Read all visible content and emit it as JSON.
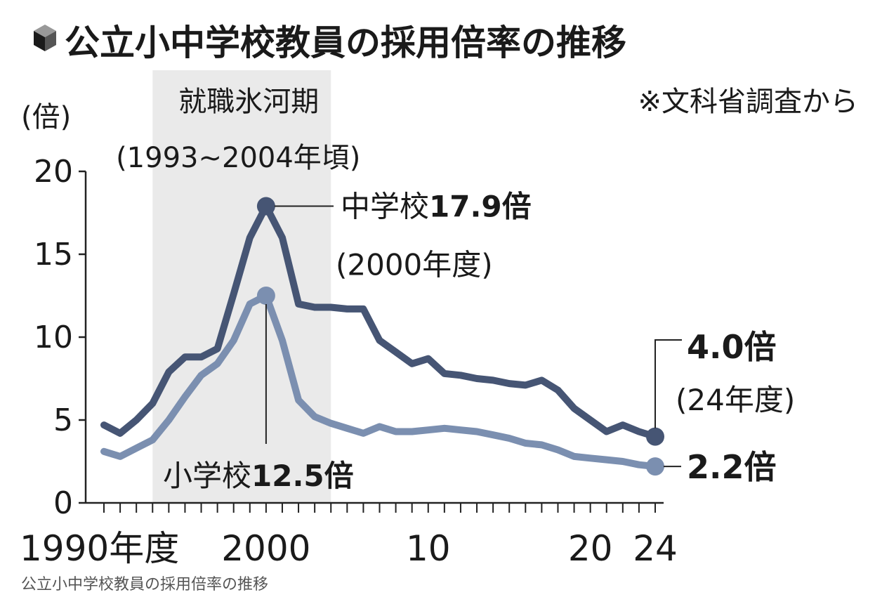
{
  "chart_data": {
    "type": "line",
    "title": "公立小中学校教員の採用倍率の推移",
    "source": "※文科省調査から",
    "ylabel": "(倍)",
    "ylim": [
      0,
      20
    ],
    "yticks": [
      "0",
      "5",
      "10",
      "15",
      "20"
    ],
    "xlim": [
      1990,
      2024
    ],
    "xticks": [
      {
        "x": 1990,
        "label": "1990年度"
      },
      {
        "x": 2000,
        "label": "2000"
      },
      {
        "x": 2010,
        "label": "10"
      },
      {
        "x": 2020,
        "label": "20"
      },
      {
        "x": 2024,
        "label": "24"
      }
    ],
    "shaded_region": {
      "x_start": 1993,
      "x_end": 2004,
      "label_line1": "就職氷河期",
      "label_line2": "(1993~2004年頃)"
    },
    "x": [
      1990,
      1991,
      1992,
      1993,
      1994,
      1995,
      1996,
      1997,
      1998,
      1999,
      2000,
      2001,
      2002,
      2003,
      2004,
      2005,
      2006,
      2007,
      2008,
      2009,
      2010,
      2011,
      2012,
      2013,
      2014,
      2015,
      2016,
      2017,
      2018,
      2019,
      2020,
      2021,
      2022,
      2023,
      2024
    ],
    "series": [
      {
        "key": "junior_high",
        "name": "中学校",
        "color": "#465574",
        "values": [
          4.7,
          4.2,
          5.0,
          6.0,
          7.9,
          8.8,
          8.8,
          9.3,
          12.6,
          16.0,
          17.9,
          16.0,
          12.0,
          11.8,
          11.8,
          11.7,
          11.7,
          9.8,
          9.1,
          8.4,
          8.7,
          7.8,
          7.7,
          7.5,
          7.4,
          7.2,
          7.1,
          7.4,
          6.8,
          5.7,
          5.0,
          4.3,
          4.7,
          4.3,
          4.0
        ]
      },
      {
        "key": "elementary",
        "name": "小学校",
        "color": "#7b8fb0",
        "values": [
          3.1,
          2.8,
          3.3,
          3.8,
          5.0,
          6.4,
          7.7,
          8.4,
          9.8,
          12.0,
          12.5,
          9.8,
          6.2,
          5.2,
          4.8,
          4.5,
          4.2,
          4.6,
          4.3,
          4.3,
          4.4,
          4.5,
          4.4,
          4.3,
          4.1,
          3.9,
          3.6,
          3.5,
          3.2,
          2.8,
          2.7,
          2.6,
          2.5,
          2.3,
          2.2
        ]
      }
    ],
    "annotations": [
      {
        "series": "junior_high",
        "x": 2000,
        "value": 17.9,
        "name": "中学校",
        "value_text": "17.9倍",
        "sub": "(2000年度)"
      },
      {
        "series": "elementary",
        "x": 2000,
        "value": 12.5,
        "name": "小学校",
        "value_text": "12.5倍"
      },
      {
        "series": "junior_high",
        "x": 2024,
        "value": 4.0,
        "value_text": "4.0倍",
        "sub": "(24年度)"
      },
      {
        "series": "elementary",
        "x": 2024,
        "value": 2.2,
        "value_text": "2.2倍"
      }
    ]
  },
  "caption": "公立小中学校教員の採用倍率の推移"
}
